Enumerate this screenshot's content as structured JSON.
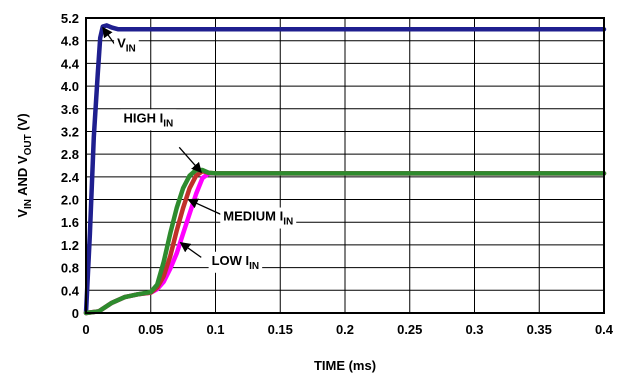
{
  "chart_data": {
    "type": "line",
    "xlabel": "TIME (ms)",
    "ylabel": {
      "prefix1": "V",
      "sub1": "IN",
      "middle": " AND V",
      "sub2": "OUT",
      "suffix": " (V)"
    },
    "xlim": [
      0,
      0.4
    ],
    "ylim": [
      0,
      5.2
    ],
    "x_ticks": [
      0,
      0.05,
      0.1,
      0.15,
      0.2,
      0.25,
      0.3,
      0.35,
      0.4
    ],
    "x_tick_labels": [
      "0",
      "0.05",
      "0.1",
      "0.15",
      "0.2",
      "0.25",
      "0.3",
      "0.35",
      "0.4"
    ],
    "y_ticks": [
      0,
      0.4,
      0.8,
      1.2,
      1.6,
      2.0,
      2.4,
      2.8,
      3.2,
      3.6,
      4.0,
      4.4,
      4.8,
      5.2
    ],
    "y_tick_labels": [
      "0",
      "0.4",
      "0.8",
      "1.2",
      "1.6",
      "2.0",
      "2.4",
      "2.8",
      "3.2",
      "3.6",
      "4.0",
      "4.4",
      "4.8",
      "5.2"
    ],
    "grid": true,
    "series": [
      {
        "key": "vin",
        "color": "#1f1f8f",
        "x": [
          0,
          0.003,
          0.006,
          0.009,
          0.011,
          0.013,
          0.016,
          0.02,
          0.025,
          0.05,
          0.1,
          0.2,
          0.3,
          0.4
        ],
        "y": [
          0,
          1.4,
          3.1,
          4.2,
          4.85,
          5.05,
          5.07,
          5.03,
          5.0,
          5.0,
          5.0,
          5.0,
          5.0,
          5.0
        ]
      },
      {
        "key": "low",
        "color": "#ff00ff",
        "x": [
          0,
          0.01,
          0.02,
          0.03,
          0.04,
          0.05,
          0.055,
          0.06,
          0.065,
          0.07,
          0.075,
          0.08,
          0.085,
          0.09,
          0.095,
          0.1,
          0.15,
          0.2,
          0.3,
          0.4
        ],
        "y": [
          0,
          0.03,
          0.18,
          0.28,
          0.33,
          0.36,
          0.42,
          0.55,
          0.78,
          1.05,
          1.4,
          1.75,
          2.1,
          2.38,
          2.46,
          2.46,
          2.46,
          2.46,
          2.46,
          2.46
        ]
      },
      {
        "key": "medium",
        "color": "#c0302a",
        "x": [
          0,
          0.01,
          0.02,
          0.03,
          0.04,
          0.05,
          0.055,
          0.06,
          0.065,
          0.07,
          0.075,
          0.08,
          0.085,
          0.09,
          0.095,
          0.1,
          0.15,
          0.2,
          0.3,
          0.4
        ],
        "y": [
          0,
          0.03,
          0.18,
          0.28,
          0.33,
          0.36,
          0.45,
          0.65,
          1.0,
          1.45,
          1.85,
          2.2,
          2.42,
          2.5,
          2.47,
          2.46,
          2.46,
          2.46,
          2.46,
          2.46
        ]
      },
      {
        "key": "high",
        "color": "#2e8b2e",
        "x": [
          0,
          0.01,
          0.02,
          0.03,
          0.04,
          0.05,
          0.055,
          0.06,
          0.065,
          0.07,
          0.075,
          0.08,
          0.085,
          0.09,
          0.095,
          0.1,
          0.15,
          0.2,
          0.3,
          0.4
        ],
        "y": [
          0,
          0.03,
          0.18,
          0.28,
          0.33,
          0.37,
          0.5,
          0.9,
          1.4,
          1.85,
          2.2,
          2.42,
          2.52,
          2.52,
          2.47,
          2.46,
          2.46,
          2.46,
          2.46,
          2.46
        ]
      }
    ],
    "annotations": [
      {
        "key": "vin",
        "main": "V",
        "sub": "IN",
        "x": 0.024,
        "y": 4.68,
        "arrow_from": [
          0.024,
          4.68
        ],
        "arrow_to": [
          0.013,
          5.03
        ]
      },
      {
        "key": "high",
        "main": "HIGH I",
        "sub": "IN",
        "x": 0.029,
        "y": 3.36,
        "arrow_from": [
          0.072,
          2.92
        ],
        "arrow_to": [
          0.089,
          2.48
        ]
      },
      {
        "key": "medium",
        "main": "MEDIUM I",
        "sub": "IN",
        "x": 0.106,
        "y": 1.63,
        "arrow_from": [
          0.105,
          1.73
        ],
        "arrow_to": [
          0.079,
          2.0
        ]
      },
      {
        "key": "low",
        "main": "LOW I",
        "sub": "IN",
        "x": 0.097,
        "y": 0.85,
        "arrow_from": [
          0.089,
          0.98
        ],
        "arrow_to": [
          0.073,
          1.24
        ]
      }
    ]
  }
}
